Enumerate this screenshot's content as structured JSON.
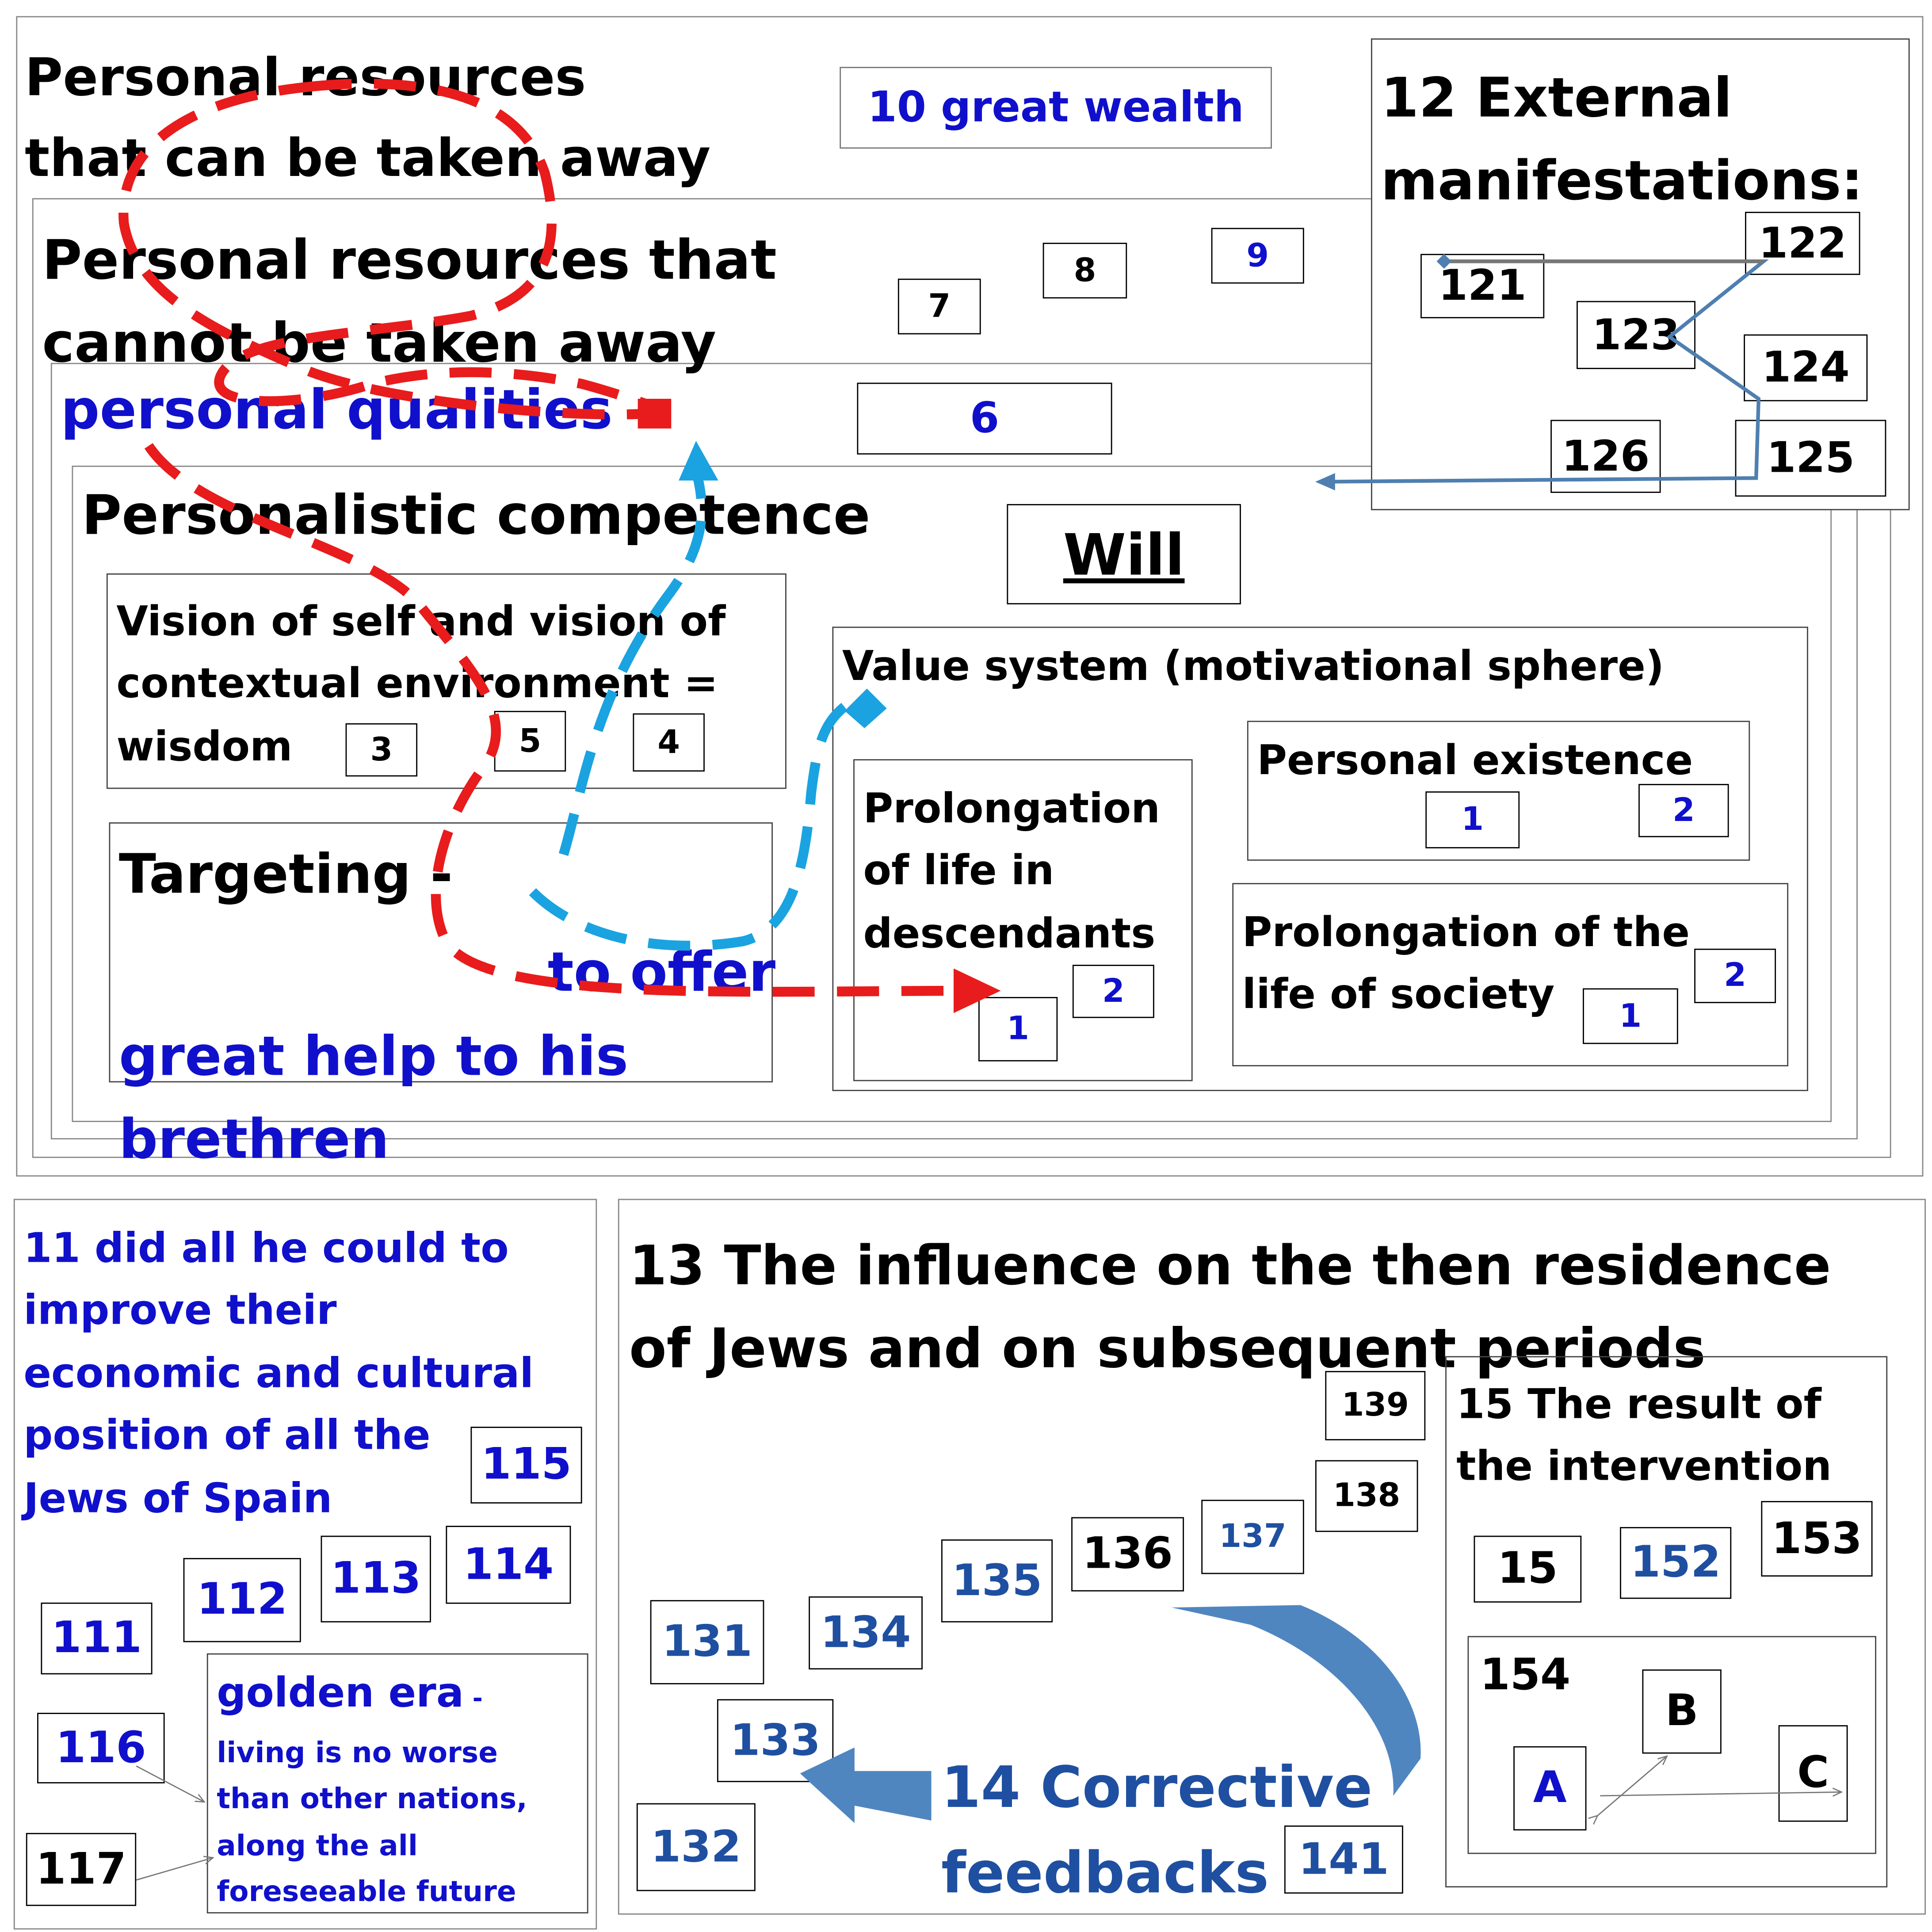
{
  "colors": {
    "ink": "#000000",
    "blue": "#1010cc",
    "dark_blue": "#1f4fa0",
    "red_dash": "#e81c1c",
    "cyan_dash": "#1aa3e0",
    "arrow_blue": "#4f86c0"
  },
  "top": {
    "title_take_away": "Personal resources\nthat can be taken away",
    "great_wealth": "10 great wealth",
    "title_cannot": "Personal resources that\ncannot be taken away",
    "box7": "7",
    "box8": "8",
    "box9": "9",
    "personal_qualities": "personal qualities",
    "box6": "6",
    "personalistic": "Personalistic competence",
    "will": "Will",
    "vision_text": "Vision of self and vision of\ncontextual environment =\nwisdom",
    "box3": "3",
    "box5": "5",
    "box4": "4",
    "targeting_a": "Targeting - ",
    "targeting_b": "to offer\ngreat help to his\nbrethren",
    "value_system": "Value system (motivational sphere)",
    "prolong_desc": "Prolongation\nof life in\ndescendants",
    "pd_1": "1",
    "pd_2": "2",
    "personal_existence": "Personal existence",
    "pe_1": "1",
    "pe_2": "2",
    "prolong_soc": "Prolongation of the\nlife of society",
    "ps_1": "1",
    "ps_2": "2"
  },
  "external": {
    "title": "12 External\nmanifestations:",
    "b121": "121",
    "b122": "122",
    "b123": "123",
    "b124": "124",
    "b125": "125",
    "b126": "126"
  },
  "left_panel": {
    "title": "11 did all he could to\nimprove their\neconomic and cultural\nposition of all the\nJews of Spain",
    "b115": "115",
    "b112": "112",
    "b113": "113",
    "b114": "114",
    "b111": "111",
    "b116": "116",
    "b117": "117",
    "golden_head": "golden era",
    "golden_dash": " -",
    "golden_body": "living is no worse\nthan other nations,\nalong the all\nforeseeable future"
  },
  "influence": {
    "title": "13 The influence on the then residence\nof Jews and on subsequent periods",
    "b139": "139",
    "b138": "138",
    "b137": "137",
    "b136": "136",
    "b135": "135",
    "b134": "134",
    "b131": "131",
    "b133": "133",
    "b132": "132",
    "b141": "141",
    "corrective": "14 Corrective\nfeedbacks",
    "result_title": "15 The result of\nthe intervention",
    "b15": "15",
    "b152": "152",
    "b153": "153",
    "b154": "154",
    "lA": "A",
    "lB": "B",
    "lC": "C"
  }
}
